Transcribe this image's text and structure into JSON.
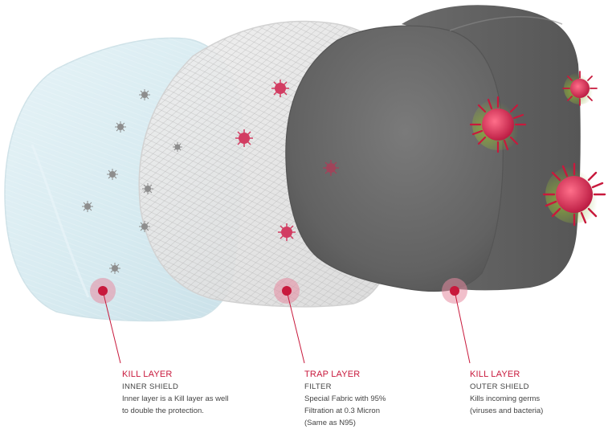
{
  "accent_color": "#c8193c",
  "layers": [
    {
      "id": "inner",
      "title": "KILL LAYER",
      "subtitle": "INNER SHIELD",
      "description": "Inner layer is a Kill layer as well\nto double the protection."
    },
    {
      "id": "trap",
      "title": "TRAP LAYER",
      "subtitle": "FILTER",
      "description": "Special Fabric with 95%\nFiltration at 0.3 Micron\n(Same as N95)"
    },
    {
      "id": "outer",
      "title": "KILL LAYER",
      "subtitle": "OUTER SHIELD",
      "description": "Kills incoming germs\n(viruses and bacteria)"
    }
  ]
}
